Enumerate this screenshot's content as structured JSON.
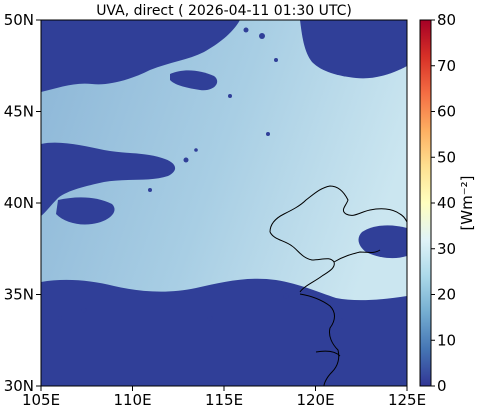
{
  "title": "UVA, direct ( 2026-04-11 01:30 UTC)",
  "map": {
    "lon_range": [
      105,
      125
    ],
    "lat_range": [
      30,
      50
    ],
    "x_ticks": [
      {
        "value": 105,
        "label": "105E"
      },
      {
        "value": 110,
        "label": "110E"
      },
      {
        "value": 115,
        "label": "115E"
      },
      {
        "value": 120,
        "label": "120E"
      },
      {
        "value": 125,
        "label": "125E"
      }
    ],
    "y_ticks": [
      {
        "value": 30,
        "label": "30N"
      },
      {
        "value": 35,
        "label": "35N"
      },
      {
        "value": 40,
        "label": "40N"
      },
      {
        "value": 45,
        "label": "45N"
      },
      {
        "value": 50,
        "label": "50N"
      }
    ],
    "colors": {
      "masked_low": "#303f98",
      "field_west": "#8eb8d8",
      "field_east": "#c6e3ee",
      "coastline": "#000000"
    }
  },
  "colorbar": {
    "label": "[Wm⁻²]",
    "range": [
      0,
      80
    ],
    "ticks": [
      {
        "value": 0,
        "label": "0"
      },
      {
        "value": 10,
        "label": "10"
      },
      {
        "value": 20,
        "label": "20"
      },
      {
        "value": 30,
        "label": "30"
      },
      {
        "value": 40,
        "label": "40"
      },
      {
        "value": 50,
        "label": "50"
      },
      {
        "value": 60,
        "label": "60"
      },
      {
        "value": 70,
        "label": "70"
      },
      {
        "value": 80,
        "label": "80"
      }
    ],
    "colormap": [
      "#313695",
      "#4575b4",
      "#74add1",
      "#abd9e9",
      "#e0f3f8",
      "#ffffbf",
      "#fee090",
      "#fdae61",
      "#f46d43",
      "#d73027",
      "#a50026"
    ]
  }
}
